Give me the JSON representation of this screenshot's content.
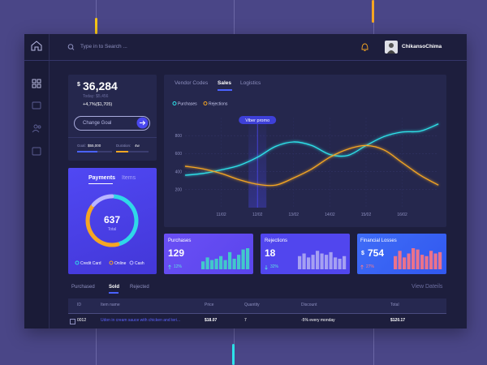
{
  "topbar": {
    "search_placeholder": "Type in to Search ...",
    "username": "ChikansoChima"
  },
  "balance": {
    "currency": "$",
    "amount": "36,284",
    "today": "Today: $5,456",
    "change": "+4,7%($1,705)",
    "button": "Change Goal",
    "goal_label": "Goal:",
    "goal": "$55,000",
    "duration_label": "Duration:",
    "duration": "4w"
  },
  "payments_tabs": [
    "Payments",
    "Items"
  ],
  "sales_tabs": [
    "Vendor Codes",
    "Sales",
    "Logistics"
  ],
  "chart_data": [
    {
      "type": "donut",
      "center_value": 637,
      "center_label": "Total",
      "categories": [
        "Credit Card",
        "Online",
        "Cash"
      ],
      "values": [
        45,
        40,
        15
      ],
      "colors": [
        "#2fd8e8",
        "#f5a623",
        "#b9b5ff"
      ]
    },
    {
      "type": "line",
      "categories": [
        null,
        null,
        "11/02",
        null,
        "12/02",
        null,
        "13/02",
        null,
        "14/02",
        null,
        "15/02",
        null,
        "16/02",
        null,
        null
      ],
      "series": [
        {
          "name": "Purchases",
          "color": "#2de3ea",
          "values": [
            360,
            380,
            420,
            470,
            560,
            680,
            730,
            690,
            590,
            580,
            690,
            790,
            840,
            850,
            930
          ]
        },
        {
          "name": "Rejections",
          "color": "#f5a623",
          "values": [
            460,
            430,
            380,
            310,
            260,
            250,
            330,
            430,
            560,
            650,
            690,
            640,
            500,
            360,
            250
          ]
        }
      ],
      "ylim": [
        0,
        1000
      ],
      "yticks": [
        200,
        400,
        600,
        800
      ],
      "grid": true,
      "annotation": {
        "text": "Viber promo",
        "x": "12/02"
      }
    },
    {
      "type": "bar",
      "title": "Purchases",
      "value": 129,
      "change": "12%",
      "color": "#3fd6c6",
      "values": [
        6,
        9,
        7,
        8,
        10,
        7,
        13,
        8,
        11,
        15,
        16
      ],
      "ylim": [
        0,
        16
      ]
    },
    {
      "type": "bar",
      "title": "Rejections",
      "value": 18,
      "change": "32%",
      "color": "#aeaaf2",
      "values": [
        10,
        12,
        9,
        11,
        14,
        12,
        11,
        13,
        9,
        8,
        10
      ],
      "ylim": [
        0,
        16
      ]
    },
    {
      "type": "bar",
      "title": "Financial Losses",
      "currency": "$",
      "value": 754,
      "change": "27%",
      "color": "#ff7480",
      "values": [
        10,
        14,
        9,
        12,
        16,
        15,
        11,
        10,
        14,
        12,
        13
      ],
      "ylim": [
        0,
        16
      ]
    }
  ],
  "table": {
    "tabs": [
      "Purchased",
      "Sold",
      "Rejected"
    ],
    "view_link": "View Dateils",
    "columns": [
      "ID",
      "Item name",
      "Price",
      "Quantity",
      "Discount",
      "Total"
    ],
    "rows": [
      [
        "0012",
        "Udon in cream sauce with chicken and teri...",
        "$18.07",
        "7",
        "-5% every monday",
        "$120.17"
      ]
    ]
  }
}
